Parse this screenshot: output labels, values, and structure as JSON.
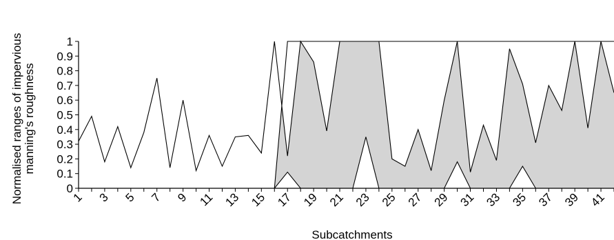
{
  "chart_data": {
    "type": "area",
    "ylabel_line1": "Normalised ranges of impervious",
    "ylabel_line2": "manning's  roughness",
    "xlabel": "Subcatchments",
    "xlim": [
      1,
      42
    ],
    "ylim": [
      0,
      1
    ],
    "yticks": [
      "0",
      "0.1",
      "0.2",
      "0.3",
      "0.4",
      "0.5",
      "0.6",
      "0.7",
      "0.8",
      "0.9",
      "1"
    ],
    "xticks": [
      "1",
      "3",
      "5",
      "7",
      "9",
      "11",
      "13",
      "15",
      "17",
      "19",
      "21",
      "23",
      "25",
      "27",
      "29",
      "31",
      "33",
      "35",
      "37",
      "39",
      "41"
    ],
    "x": [
      1,
      2,
      3,
      4,
      5,
      6,
      7,
      8,
      9,
      10,
      11,
      12,
      13,
      14,
      15,
      16,
      17,
      18,
      19,
      20,
      21,
      22,
      23,
      24,
      25,
      26,
      27,
      28,
      29,
      30,
      31,
      32,
      33,
      34,
      35,
      36,
      37,
      38,
      39,
      40,
      41,
      42
    ],
    "series": [
      {
        "values": [
          0.32,
          0.49,
          0.18,
          0.42,
          0.14,
          0.38,
          0.75,
          0.14,
          0.6,
          0.12,
          0.36,
          0.15,
          0.35,
          0.36,
          0.24,
          1.0,
          0.22,
          1.0,
          0.86,
          0.39,
          1.0,
          1.0,
          1.0,
          1.0,
          0.2,
          0.15,
          0.4,
          0.12,
          0.6,
          1.0,
          0.11,
          0.43,
          0.19,
          0.95,
          0.71,
          0.31,
          0.7,
          0.53,
          1.0,
          0.41,
          1.0,
          0.65
        ]
      },
      {
        "values": [
          0,
          0,
          0,
          0,
          0,
          0,
          0,
          0,
          0,
          0,
          0,
          0,
          0,
          0,
          0,
          0,
          1.0,
          1.0,
          1.0,
          1.0,
          1.0,
          1.0,
          1.0,
          1.0,
          1.0,
          1.0,
          1.0,
          1.0,
          1.0,
          1.0,
          1.0,
          1.0,
          1.0,
          1.0,
          1.0,
          1.0,
          1.0,
          1.0,
          1.0,
          1.0,
          1.0,
          1.0
        ]
      },
      {
        "values": [
          0,
          0,
          0,
          0,
          0,
          0,
          0,
          0,
          0,
          0,
          0,
          0,
          0,
          0,
          0,
          0,
          0.11,
          0,
          0,
          0,
          0,
          0,
          0.35,
          0,
          0,
          0,
          0,
          0,
          0,
          0.18,
          0,
          0,
          0,
          0,
          0.15,
          0,
          0,
          0,
          0,
          0,
          0,
          0
        ]
      }
    ],
    "area_color": "#d4d4d4",
    "line_color": "#000000"
  }
}
